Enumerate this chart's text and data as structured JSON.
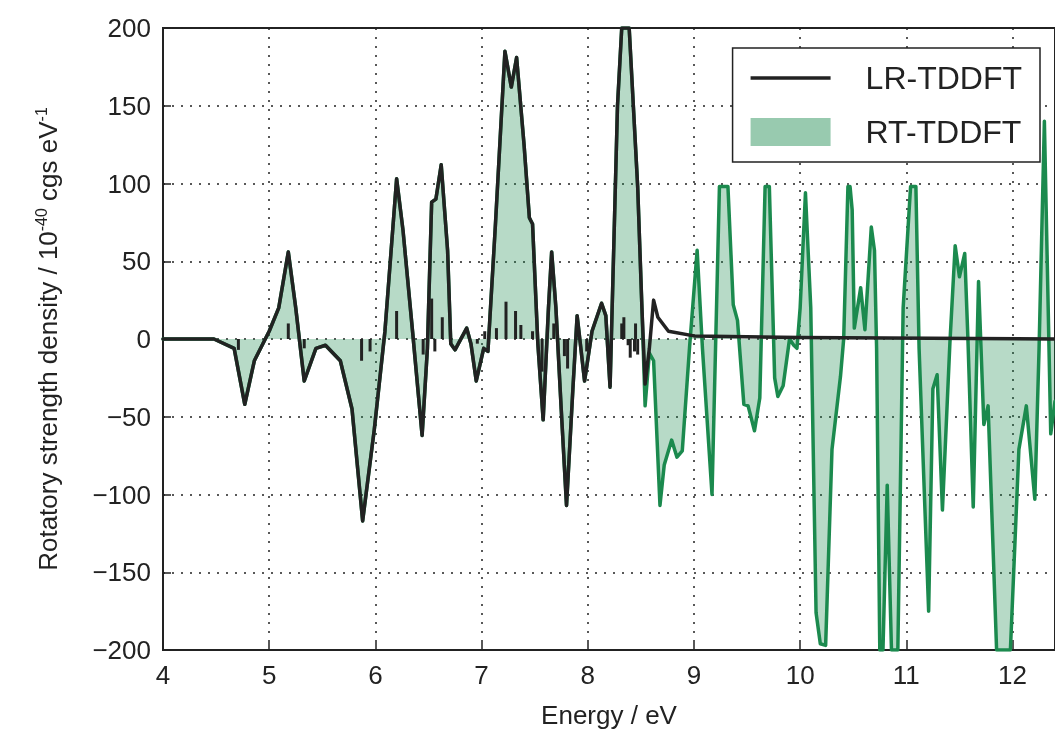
{
  "chart_data": {
    "type": "line",
    "xlabel": "Energy / eV",
    "ylabel": "Rotatory strength density / 10$^{-40}$ cgs eV$^{-1}$",
    "xlim": [
      4,
      12.4
    ],
    "ylim": [
      -200,
      200
    ],
    "xticks": [
      4,
      5,
      6,
      7,
      8,
      9,
      10,
      11,
      12
    ],
    "yticks": [
      {
        "value": -200,
        "label": "−200"
      },
      {
        "value": -150,
        "label": "−150"
      },
      {
        "value": -100,
        "label": "−100"
      },
      {
        "value": -50,
        "label": "−50"
      },
      0,
      50,
      100,
      150,
      200
    ],
    "grid": true,
    "legend": "top right",
    "series": [
      {
        "name": "RT-TDDFT",
        "type": "area",
        "color": "#1b8a4e",
        "x": [
          4.0,
          4.48,
          4.67,
          4.77,
          4.86,
          5.0,
          5.09,
          5.18,
          5.25,
          5.33,
          5.44,
          5.53,
          5.67,
          5.78,
          5.88,
          5.99,
          6.09,
          6.2,
          6.26,
          6.35,
          6.44,
          6.49,
          6.53,
          6.57,
          6.62,
          6.68,
          6.71,
          6.75,
          6.86,
          6.9,
          6.95,
          7.02,
          7.06,
          7.13,
          7.22,
          7.28,
          7.33,
          7.4,
          7.45,
          7.48,
          7.53,
          7.58,
          7.63,
          7.66,
          7.7,
          7.75,
          7.8,
          7.86,
          7.9,
          7.97,
          8.04,
          8.13,
          8.17,
          8.21,
          8.28,
          8.32,
          8.39,
          8.47,
          8.51,
          8.54,
          8.58,
          8.62,
          8.68,
          8.72,
          8.79,
          8.84,
          8.89,
          8.96,
          9.03,
          9.08,
          9.17,
          9.24,
          9.32,
          9.37,
          9.41,
          9.47,
          9.51,
          9.57,
          9.62,
          9.67,
          9.71,
          9.76,
          9.79,
          9.84,
          9.9,
          9.94,
          9.97,
          10.0,
          10.05,
          10.1,
          10.15,
          10.19,
          10.24,
          10.3,
          10.38,
          10.41,
          10.45,
          10.47,
          10.49,
          10.51,
          10.57,
          10.61,
          10.67,
          10.7,
          10.72,
          10.75,
          10.78,
          10.82,
          10.86,
          10.92,
          10.97,
          11.04,
          11.09,
          11.12,
          11.21,
          11.25,
          11.29,
          11.34,
          11.41,
          11.46,
          11.5,
          11.55,
          11.58,
          11.63,
          11.68,
          11.73,
          11.77,
          11.85,
          11.98,
          12.06,
          12.13,
          12.21,
          12.25,
          12.3,
          12.36,
          12.4
        ],
        "values": [
          0,
          0,
          -6,
          -42,
          -14,
          5,
          20,
          56,
          20,
          -27,
          -6,
          -4,
          -14,
          -45,
          -117,
          -58,
          5,
          103,
          70,
          5,
          -62,
          -6,
          88,
          90,
          112,
          57,
          -3,
          -7,
          7,
          -3,
          -27,
          -6,
          -8,
          73,
          185,
          162,
          181,
          125,
          78,
          74,
          -3,
          -52,
          20,
          56,
          20,
          -45,
          -107,
          -32,
          15,
          -27,
          5,
          23,
          15,
          -31,
          150,
          200,
          200,
          98,
          20,
          -43,
          -9,
          -14,
          -107,
          -81,
          -65,
          -76,
          -72,
          -4,
          57,
          -6,
          -100,
          98,
          98,
          22,
          12,
          -42,
          -43,
          -59,
          -38,
          98,
          98,
          -25,
          -37,
          -30,
          0,
          -4,
          -6,
          20,
          94,
          20,
          -176,
          -196,
          -197,
          -71,
          -24,
          0,
          98,
          98,
          83,
          7,
          33,
          6,
          72,
          57,
          -6,
          -200,
          -200,
          -94,
          -200,
          -200,
          20,
          98,
          98,
          -6,
          -175,
          -32,
          -23,
          -110,
          -3,
          60,
          40,
          55,
          0,
          -108,
          37,
          -55,
          -43,
          -200,
          -200,
          -71,
          -43,
          -103,
          -6,
          140,
          -61,
          -40
        ]
      },
      {
        "name": "LR-TDDFT",
        "type": "line",
        "color": "#222222",
        "x": [
          4.0,
          4.48,
          4.67,
          4.77,
          4.86,
          5.0,
          5.09,
          5.18,
          5.25,
          5.33,
          5.44,
          5.53,
          5.67,
          5.78,
          5.88,
          5.99,
          6.09,
          6.2,
          6.26,
          6.35,
          6.44,
          6.49,
          6.53,
          6.57,
          6.62,
          6.68,
          6.71,
          6.75,
          6.86,
          6.9,
          6.95,
          7.02,
          7.06,
          7.13,
          7.22,
          7.28,
          7.33,
          7.4,
          7.45,
          7.48,
          7.53,
          7.58,
          7.63,
          7.66,
          7.7,
          7.75,
          7.8,
          7.86,
          7.9,
          7.97,
          8.04,
          8.13,
          8.17,
          8.21,
          8.28,
          8.32,
          8.39,
          8.47,
          8.51,
          8.54,
          8.58,
          8.62,
          8.66,
          8.76,
          9.0,
          10.0,
          12.4
        ],
        "values": [
          0,
          0,
          -6,
          -42,
          -14,
          5,
          20,
          56,
          20,
          -27,
          -6,
          -4,
          -14,
          -45,
          -117,
          -58,
          5,
          103,
          70,
          5,
          -62,
          -6,
          88,
          90,
          112,
          57,
          -3,
          -7,
          7,
          -3,
          -27,
          -6,
          -8,
          73,
          185,
          162,
          181,
          125,
          78,
          74,
          -3,
          -52,
          20,
          56,
          20,
          -45,
          -107,
          -32,
          15,
          -27,
          5,
          23,
          15,
          -31,
          150,
          200,
          200,
          98,
          20,
          -29,
          -6,
          25,
          14,
          5,
          2,
          1,
          0
        ]
      },
      {
        "type": "bar",
        "color": "#222222",
        "x": [
          4.71,
          5.18,
          5.33,
          5.87,
          5.95,
          6.2,
          6.45,
          6.53,
          6.56,
          6.63,
          6.96,
          7.03,
          7.07,
          7.14,
          7.23,
          7.32,
          7.37,
          7.48,
          7.57,
          7.68,
          7.78,
          7.81,
          7.99,
          8.22,
          8.32,
          8.34,
          8.38,
          8.4,
          8.44,
          8.45,
          8.47
        ],
        "values": [
          -7,
          10,
          -6,
          -14,
          -8,
          18,
          -10,
          26,
          -8,
          14,
          -3,
          5,
          null,
          7,
          24,
          18,
          9,
          5,
          -21,
          10,
          -11,
          -19,
          -8,
          null,
          10,
          14,
          -4,
          -12,
          -8,
          10,
          -10
        ]
      }
    ]
  }
}
